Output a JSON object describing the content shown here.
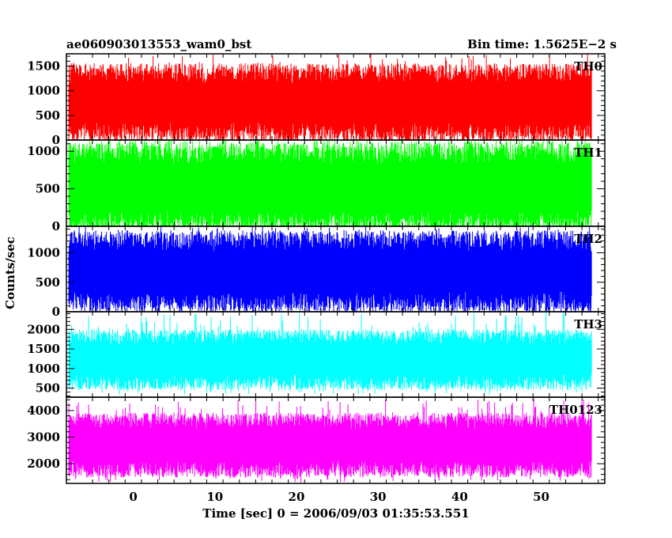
{
  "header": {
    "title": "ae060903013553_wam0_bst",
    "bin_time": "Bin time: 1.5625E−2 s"
  },
  "chart_data": {
    "type": "line",
    "title": "ae060903013553_wam0_bst",
    "xlabel": "Time [sec] 0 = 2006/09/03 01:35:53.551",
    "ylabel": "Counts/sec",
    "xlim": [
      -8.2,
      57.8
    ],
    "x_ticks": [
      0,
      10,
      20,
      30,
      40,
      50
    ],
    "x_tick_labels": [
      "0",
      "10",
      "20",
      "30",
      "40",
      "50"
    ],
    "data_x_range": [
      -7.9,
      56.2
    ],
    "bin_time_sec": 0.015625,
    "panels": [
      {
        "name": "TH0",
        "color": "#ff0000",
        "ylim": [
          0,
          1750
        ],
        "y_ticks": [
          0,
          500,
          1000,
          1500
        ],
        "y_tick_labels": [
          "0",
          "500",
          "1000",
          "1500"
        ],
        "approx_low": 150,
        "approx_high": 1350,
        "approx_min": 0,
        "approx_max": 1750
      },
      {
        "name": "TH1",
        "color": "#00ff00",
        "ylim": [
          0,
          1150
        ],
        "y_ticks": [
          0,
          500,
          1000
        ],
        "y_tick_labels": [
          "0",
          "500",
          "1000"
        ],
        "approx_low": 60,
        "approx_high": 980,
        "approx_min": 0,
        "approx_max": 1150
      },
      {
        "name": "TH2",
        "color": "#0000ff",
        "ylim": [
          0,
          1450
        ],
        "y_ticks": [
          0,
          500,
          1000
        ],
        "y_tick_labels": [
          "0",
          "500",
          "1000"
        ],
        "approx_low": 160,
        "approx_high": 1200,
        "approx_min": 0,
        "approx_max": 1450
      },
      {
        "name": "TH3",
        "color": "#00ffff",
        "ylim": [
          270,
          2450
        ],
        "y_ticks": [
          500,
          1000,
          1500,
          2000
        ],
        "y_tick_labels": [
          "500",
          "1000",
          "1500",
          "2000"
        ],
        "approx_low": 650,
        "approx_high": 1800,
        "approx_min": 330,
        "approx_max": 2450
      },
      {
        "name": "TH0123",
        "color": "#ff00ff",
        "ylim": [
          1260,
          4500
        ],
        "y_ticks": [
          2000,
          3000,
          4000
        ],
        "y_tick_labels": [
          "2000",
          "3000",
          "4000"
        ],
        "approx_low": 1800,
        "approx_high": 3600,
        "approx_min": 1300,
        "approx_max": 4450
      }
    ]
  }
}
